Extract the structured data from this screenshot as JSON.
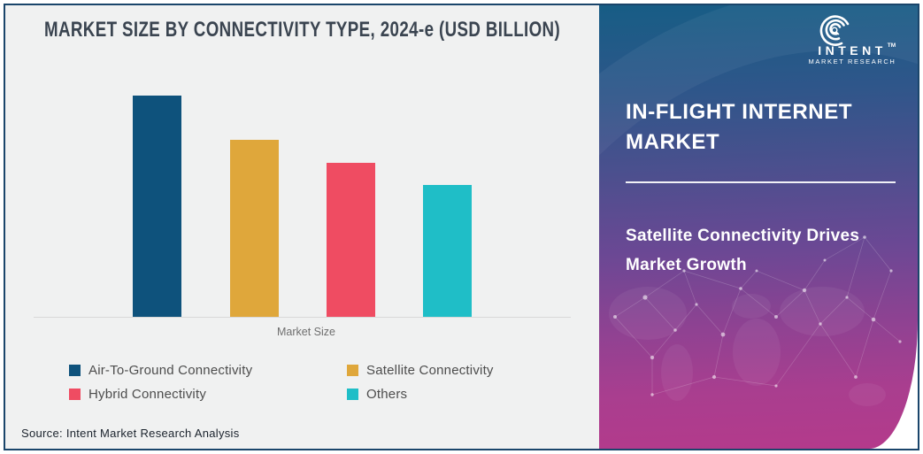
{
  "source_note": "Source: Intent Market Research Analysis",
  "chart_data": {
    "type": "bar",
    "title": "MARKET SIZE BY CONNECTIVITY TYPE, 2024-e (USD BILLION)",
    "xlabel": "Market Size",
    "ylabel": "",
    "categories": [
      "Air-To-Ground Connectivity",
      "Satellite Connectivity",
      "Hybrid Connectivity",
      "Others"
    ],
    "values": [
      100,
      80,
      69.5,
      59.5
    ],
    "value_axis_labels_visible": false,
    "ylim": [
      0,
      112
    ],
    "grid": false,
    "legend_position": "bottom",
    "colors": [
      "#0E527C",
      "#DFA73B",
      "#EF4C62",
      "#1FBEC7"
    ],
    "background": "#F0F1F1"
  },
  "panel": {
    "heading": "IN-FLIGHT INTERNET MARKET",
    "subheading": "Satellite Connectivity Drives Market Growth",
    "logo": {
      "brand": "INTENT",
      "trademark": "TM",
      "brand_sub": "MARKET RESEARCH"
    },
    "colors": {
      "gradient_top": "#175D85",
      "gradient_middle": "#6B4894",
      "gradient_bottom": "#B43A8B"
    }
  },
  "frame": {
    "border_color": "#1A456B"
  }
}
